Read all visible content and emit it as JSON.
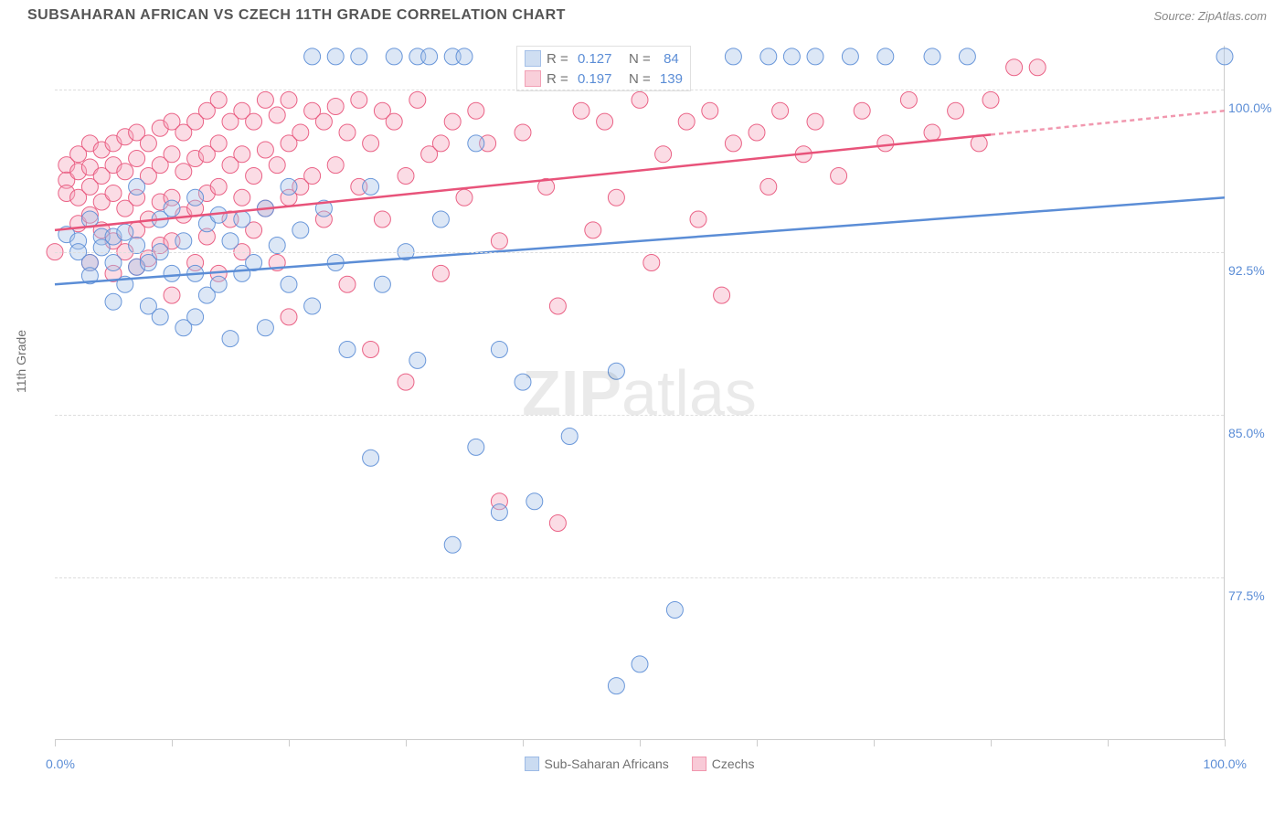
{
  "title": "SUBSAHARAN AFRICAN VS CZECH 11TH GRADE CORRELATION CHART",
  "source": "Source: ZipAtlas.com",
  "ylabel": "11th Grade",
  "watermark_zip": "ZIP",
  "watermark_atlas": "atlas",
  "chart": {
    "type": "scatter",
    "xlim": [
      0,
      100
    ],
    "ylim": [
      70,
      102
    ],
    "y_ticks": [
      77.5,
      85.0,
      92.5,
      100.0
    ],
    "y_tick_labels": [
      "77.5%",
      "85.0%",
      "92.5%",
      "100.0%"
    ],
    "x_ticks": [
      0,
      10,
      20,
      30,
      40,
      50,
      60,
      70,
      80,
      90,
      100
    ],
    "x_tick_labels": {
      "0": "0.0%",
      "100": "100.0%"
    },
    "background_color": "#ffffff",
    "grid_color": "#dddddd",
    "marker_radius": 9,
    "marker_opacity": 0.4,
    "marker_stroke_opacity": 0.9,
    "line_width": 2.5,
    "series": [
      {
        "name": "Sub-Saharan Africans",
        "color": "#5b8dd6",
        "fill": "#a8c4e8",
        "R": "0.127",
        "N": "84",
        "trend": {
          "x1": 0,
          "y1": 91.0,
          "x2": 100,
          "y2": 95.0,
          "solid_until": 100
        },
        "points": [
          [
            1,
            93.3
          ],
          [
            2,
            93.0
          ],
          [
            2,
            92.5
          ],
          [
            3,
            94.0
          ],
          [
            3,
            92.0
          ],
          [
            3,
            91.4
          ],
          [
            4,
            93.2
          ],
          [
            4,
            92.7
          ],
          [
            5,
            93.2
          ],
          [
            5,
            92.0
          ],
          [
            5,
            90.2
          ],
          [
            6,
            93.4
          ],
          [
            6,
            91.0
          ],
          [
            7,
            95.5
          ],
          [
            7,
            92.8
          ],
          [
            7,
            91.8
          ],
          [
            8,
            92.0
          ],
          [
            8,
            90.0
          ],
          [
            9,
            94.0
          ],
          [
            9,
            92.5
          ],
          [
            9,
            89.5
          ],
          [
            10,
            94.5
          ],
          [
            10,
            91.5
          ],
          [
            11,
            93.0
          ],
          [
            11,
            89.0
          ],
          [
            12,
            95.0
          ],
          [
            12,
            91.5
          ],
          [
            12,
            89.5
          ],
          [
            13,
            93.8
          ],
          [
            13,
            90.5
          ],
          [
            14,
            94.2
          ],
          [
            14,
            91.0
          ],
          [
            15,
            93.0
          ],
          [
            15,
            88.5
          ],
          [
            16,
            94.0
          ],
          [
            16,
            91.5
          ],
          [
            17,
            92.0
          ],
          [
            18,
            94.5
          ],
          [
            18,
            89.0
          ],
          [
            19,
            92.8
          ],
          [
            20,
            95.5
          ],
          [
            20,
            91.0
          ],
          [
            21,
            93.5
          ],
          [
            22,
            101.5
          ],
          [
            22,
            90.0
          ],
          [
            23,
            94.5
          ],
          [
            24,
            101.5
          ],
          [
            24,
            92.0
          ],
          [
            25,
            88.0
          ],
          [
            26,
            101.5
          ],
          [
            27,
            95.5
          ],
          [
            27,
            83.0
          ],
          [
            28,
            91.0
          ],
          [
            29,
            101.5
          ],
          [
            30,
            92.5
          ],
          [
            31,
            101.5
          ],
          [
            31,
            87.5
          ],
          [
            32,
            101.5
          ],
          [
            33,
            94.0
          ],
          [
            34,
            101.5
          ],
          [
            34,
            79.0
          ],
          [
            35,
            101.5
          ],
          [
            36,
            97.5
          ],
          [
            36,
            83.5
          ],
          [
            38,
            88.0
          ],
          [
            38,
            80.5
          ],
          [
            40,
            86.5
          ],
          [
            41,
            81.0
          ],
          [
            44,
            84.0
          ],
          [
            46,
            101.5
          ],
          [
            48,
            87.0
          ],
          [
            48,
            72.5
          ],
          [
            50,
            73.5
          ],
          [
            51,
            101.5
          ],
          [
            53,
            76.0
          ],
          [
            58,
            101.5
          ],
          [
            61,
            101.5
          ],
          [
            63,
            101.5
          ],
          [
            65,
            101.5
          ],
          [
            68,
            101.5
          ],
          [
            71,
            101.5
          ],
          [
            75,
            101.5
          ],
          [
            78,
            101.5
          ],
          [
            100,
            101.5
          ]
        ]
      },
      {
        "name": "Czechs",
        "color": "#e8537a",
        "fill": "#f5a8bd",
        "R": "0.197",
        "N": "139",
        "trend": {
          "x1": 0,
          "y1": 93.5,
          "x2": 100,
          "y2": 99.0,
          "solid_until": 80
        },
        "points": [
          [
            0,
            92.5
          ],
          [
            1,
            96.5
          ],
          [
            1,
            95.8
          ],
          [
            1,
            95.2
          ],
          [
            2,
            97.0
          ],
          [
            2,
            96.2
          ],
          [
            2,
            95.0
          ],
          [
            2,
            93.8
          ],
          [
            3,
            97.5
          ],
          [
            3,
            96.4
          ],
          [
            3,
            95.5
          ],
          [
            3,
            94.2
          ],
          [
            3,
            92.0
          ],
          [
            4,
            97.2
          ],
          [
            4,
            96.0
          ],
          [
            4,
            94.8
          ],
          [
            4,
            93.5
          ],
          [
            5,
            97.5
          ],
          [
            5,
            96.5
          ],
          [
            5,
            95.2
          ],
          [
            5,
            93.0
          ],
          [
            5,
            91.5
          ],
          [
            6,
            97.8
          ],
          [
            6,
            96.2
          ],
          [
            6,
            94.5
          ],
          [
            6,
            92.5
          ],
          [
            7,
            98.0
          ],
          [
            7,
            96.8
          ],
          [
            7,
            95.0
          ],
          [
            7,
            93.5
          ],
          [
            7,
            91.8
          ],
          [
            8,
            97.5
          ],
          [
            8,
            96.0
          ],
          [
            8,
            94.0
          ],
          [
            8,
            92.2
          ],
          [
            9,
            98.2
          ],
          [
            9,
            96.5
          ],
          [
            9,
            94.8
          ],
          [
            9,
            92.8
          ],
          [
            10,
            98.5
          ],
          [
            10,
            97.0
          ],
          [
            10,
            95.0
          ],
          [
            10,
            93.0
          ],
          [
            10,
            90.5
          ],
          [
            11,
            98.0
          ],
          [
            11,
            96.2
          ],
          [
            11,
            94.2
          ],
          [
            12,
            98.5
          ],
          [
            12,
            96.8
          ],
          [
            12,
            94.5
          ],
          [
            12,
            92.0
          ],
          [
            13,
            99.0
          ],
          [
            13,
            97.0
          ],
          [
            13,
            95.2
          ],
          [
            13,
            93.2
          ],
          [
            14,
            99.5
          ],
          [
            14,
            97.5
          ],
          [
            14,
            95.5
          ],
          [
            14,
            91.5
          ],
          [
            15,
            98.5
          ],
          [
            15,
            96.5
          ],
          [
            15,
            94.0
          ],
          [
            16,
            99.0
          ],
          [
            16,
            97.0
          ],
          [
            16,
            95.0
          ],
          [
            16,
            92.5
          ],
          [
            17,
            98.5
          ],
          [
            17,
            96.0
          ],
          [
            17,
            93.5
          ],
          [
            18,
            99.5
          ],
          [
            18,
            97.2
          ],
          [
            18,
            94.5
          ],
          [
            19,
            98.8
          ],
          [
            19,
            96.5
          ],
          [
            19,
            92.0
          ],
          [
            20,
            99.5
          ],
          [
            20,
            97.5
          ],
          [
            20,
            95.0
          ],
          [
            20,
            89.5
          ],
          [
            21,
            98.0
          ],
          [
            21,
            95.5
          ],
          [
            22,
            99.0
          ],
          [
            22,
            96.0
          ],
          [
            23,
            98.5
          ],
          [
            23,
            94.0
          ],
          [
            24,
            99.2
          ],
          [
            24,
            96.5
          ],
          [
            25,
            98.0
          ],
          [
            25,
            91.0
          ],
          [
            26,
            99.5
          ],
          [
            26,
            95.5
          ],
          [
            27,
            97.5
          ],
          [
            27,
            88.0
          ],
          [
            28,
            99.0
          ],
          [
            28,
            94.0
          ],
          [
            29,
            98.5
          ],
          [
            30,
            96.0
          ],
          [
            30,
            86.5
          ],
          [
            31,
            99.5
          ],
          [
            32,
            97.0
          ],
          [
            33,
            97.5
          ],
          [
            33,
            91.5
          ],
          [
            34,
            98.5
          ],
          [
            35,
            95.0
          ],
          [
            36,
            99.0
          ],
          [
            37,
            97.5
          ],
          [
            38,
            93.0
          ],
          [
            38,
            81.0
          ],
          [
            40,
            98.0
          ],
          [
            42,
            95.5
          ],
          [
            43,
            90.0
          ],
          [
            43,
            80.0
          ],
          [
            45,
            99.0
          ],
          [
            46,
            93.5
          ],
          [
            47,
            98.5
          ],
          [
            48,
            95.0
          ],
          [
            50,
            99.5
          ],
          [
            51,
            92.0
          ],
          [
            52,
            97.0
          ],
          [
            54,
            98.5
          ],
          [
            55,
            94.0
          ],
          [
            56,
            99.0
          ],
          [
            57,
            90.5
          ],
          [
            58,
            97.5
          ],
          [
            60,
            98.0
          ],
          [
            61,
            95.5
          ],
          [
            62,
            99.0
          ],
          [
            64,
            97.0
          ],
          [
            65,
            98.5
          ],
          [
            67,
            96.0
          ],
          [
            69,
            99.0
          ],
          [
            71,
            97.5
          ],
          [
            73,
            99.5
          ],
          [
            75,
            98.0
          ],
          [
            77,
            99.0
          ],
          [
            79,
            97.5
          ],
          [
            80,
            99.5
          ],
          [
            82,
            101.0
          ],
          [
            84,
            101.0
          ]
        ]
      }
    ]
  },
  "legend_label_1": "Sub-Saharan Africans",
  "legend_label_2": "Czechs"
}
